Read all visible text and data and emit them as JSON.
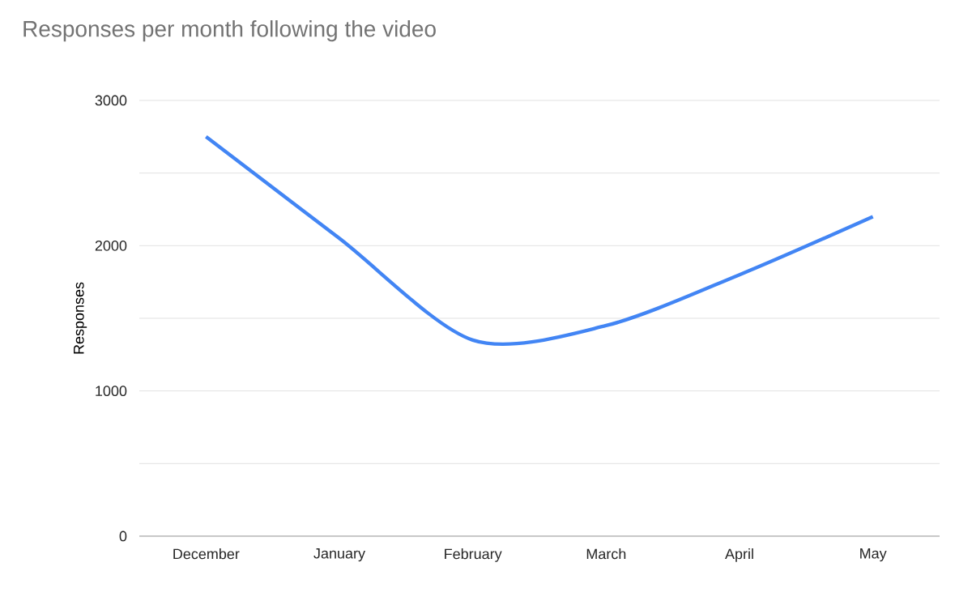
{
  "chart_data": {
    "type": "line",
    "title": "Responses per month following the video",
    "ylabel": "Responses",
    "categories": [
      "December",
      "January",
      "February",
      "March",
      "April",
      "May"
    ],
    "series": [
      {
        "color": "#4285f4",
        "values": [
          2750,
          2050,
          1350,
          1450,
          1800,
          2200
        ]
      }
    ],
    "ylim": [
      0,
      3000
    ],
    "yticks": [
      0,
      {
        "value": 500,
        "label": null
      },
      1000,
      {
        "value": 1500,
        "label": null
      },
      2000,
      {
        "value": 2500,
        "label": null
      },
      3000
    ],
    "grid": true,
    "marker": "none",
    "line_style": "solid"
  }
}
